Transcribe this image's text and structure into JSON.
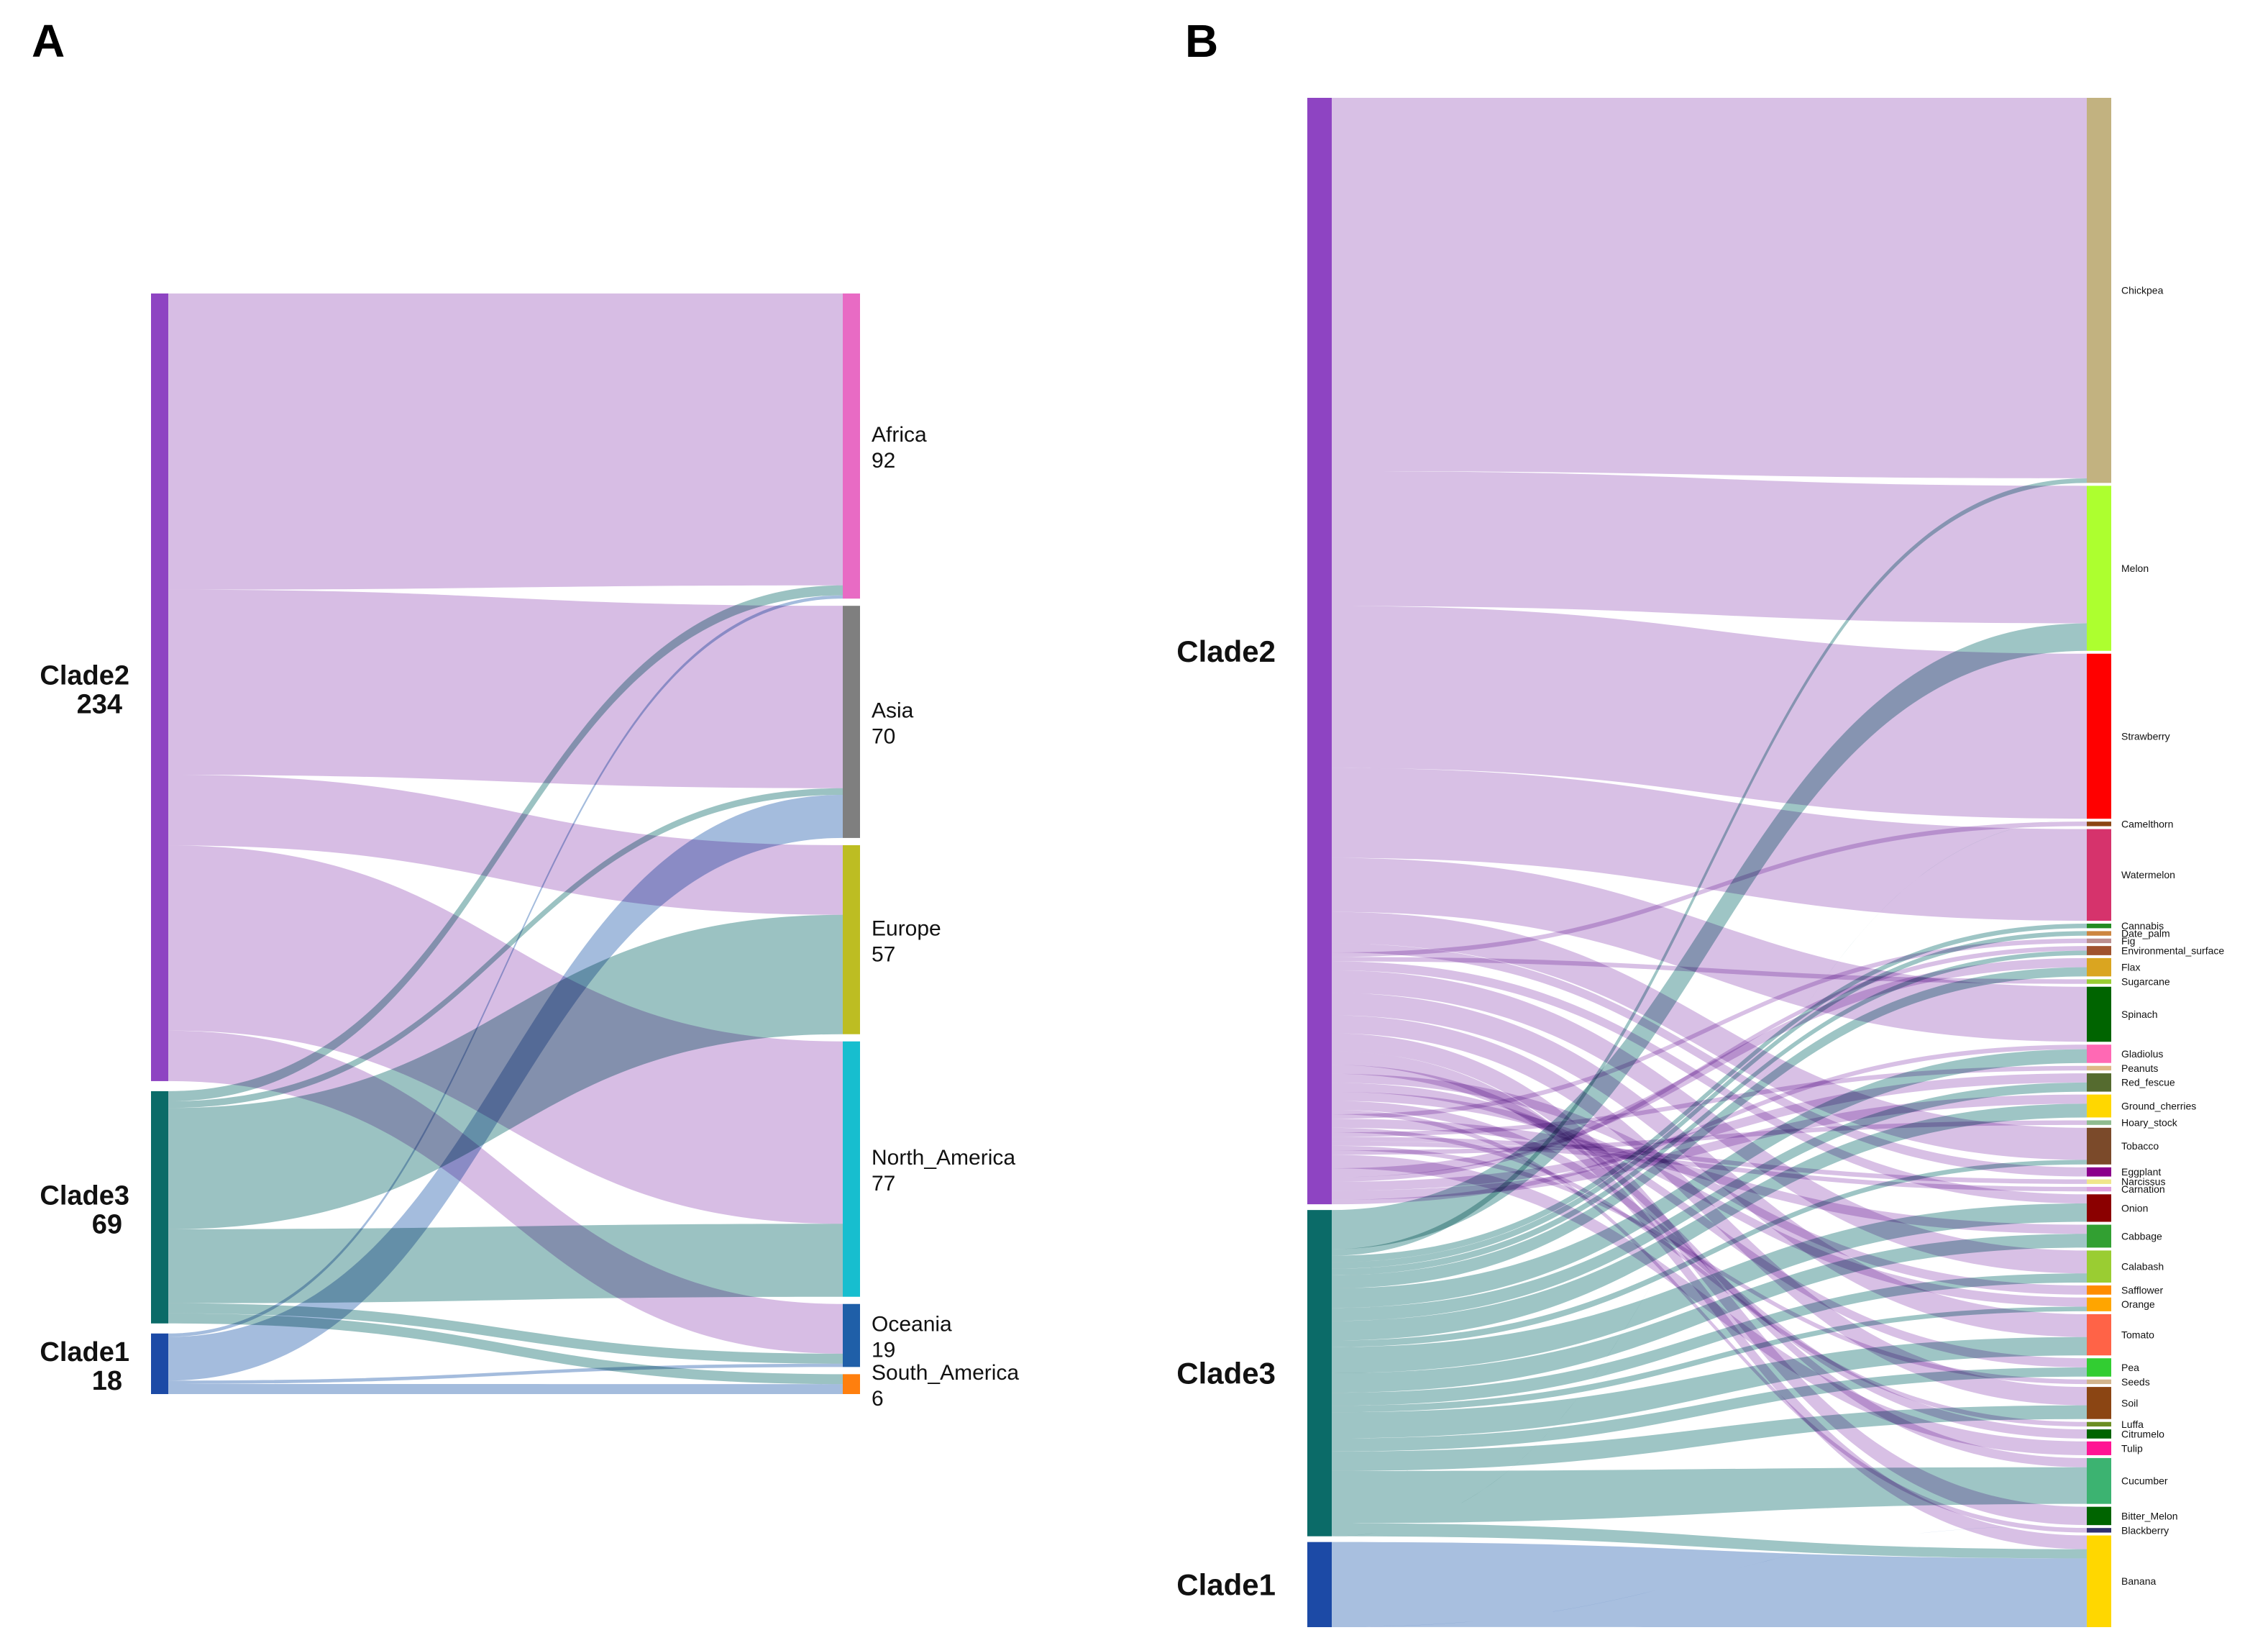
{
  "panels": [
    {
      "letter": "A",
      "sources": [
        {
          "name": "Clade2",
          "value": 234,
          "color": "#8e44c2",
          "flow": "#c9a7db"
        },
        {
          "name": "Clade3",
          "value": 69,
          "color": "#0b6b68",
          "flow": "#79aeae"
        },
        {
          "name": "Clade1",
          "value": 18,
          "color": "#1c4aa6",
          "flow": "#86a6d2"
        }
      ],
      "show_source_values": true,
      "show_target_values": true,
      "targets": [
        {
          "name": "Africa",
          "value": 92,
          "color": "#e86bc4"
        },
        {
          "name": "Asia",
          "value": 70,
          "color": "#7f7f7f"
        },
        {
          "name": "Europe",
          "value": 57,
          "color": "#bdbd22"
        },
        {
          "name": "North_America",
          "value": 77,
          "color": "#17becf"
        },
        {
          "name": "Oceania",
          "value": 19,
          "color": "#1f5fa8"
        },
        {
          "name": "South_America",
          "value": 6,
          "color": "#ff7f0e"
        }
      ],
      "links": [
        [
          "Clade2",
          "Africa",
          88
        ],
        [
          "Clade2",
          "Asia",
          55
        ],
        [
          "Clade2",
          "Europe",
          21
        ],
        [
          "Clade2",
          "North_America",
          55
        ],
        [
          "Clade2",
          "Oceania",
          15
        ],
        [
          "Clade3",
          "Africa",
          3
        ],
        [
          "Clade3",
          "Asia",
          2
        ],
        [
          "Clade3",
          "Europe",
          36
        ],
        [
          "Clade3",
          "North_America",
          22
        ],
        [
          "Clade3",
          "Oceania",
          3
        ],
        [
          "Clade3",
          "South_America",
          3
        ],
        [
          "Clade1",
          "Africa",
          1
        ],
        [
          "Clade1",
          "Asia",
          13
        ],
        [
          "Clade1",
          "Oceania",
          1
        ],
        [
          "Clade1",
          "South_America",
          3
        ]
      ]
    },
    {
      "letter": "B",
      "sources": [
        {
          "name": "Clade2",
          "value": 234,
          "color": "#8e44c2",
          "flow": "#c9a7db"
        },
        {
          "name": "Clade3",
          "value": 69,
          "color": "#0b6b68",
          "flow": "#79aeae"
        },
        {
          "name": "Clade1",
          "value": 18,
          "color": "#1c4aa6",
          "flow": "#86a6d2"
        }
      ],
      "show_source_values": false,
      "show_target_values": false,
      "targets": [
        {
          "name": "Chickpea",
          "value": 84,
          "color": "#c2b280"
        },
        {
          "name": "Melon",
          "value": 36,
          "color": "#adff2f"
        },
        {
          "name": "Strawberry",
          "value": 36,
          "color": "#ff0000"
        },
        {
          "name": "Camelthorn",
          "value": 1,
          "color": "#8b4513"
        },
        {
          "name": "Watermelon",
          "value": 20,
          "color": "#d6336c"
        },
        {
          "name": "Cannabis",
          "value": 1,
          "color": "#228b22"
        },
        {
          "name": "Date_palm",
          "value": 1,
          "color": "#cd853f"
        },
        {
          "name": "Fig",
          "value": 1,
          "color": "#bc8f8f"
        },
        {
          "name": "Environmental_surface",
          "value": 2,
          "color": "#a0522d"
        },
        {
          "name": "Flax",
          "value": 4,
          "color": "#daa520"
        },
        {
          "name": "Sugarcane",
          "value": 1,
          "color": "#9acd32"
        },
        {
          "name": "Spinach",
          "value": 12,
          "color": "#006400"
        },
        {
          "name": "Gladiolus",
          "value": 4,
          "color": "#ff69b4"
        },
        {
          "name": "Peanuts",
          "value": 1,
          "color": "#deb887"
        },
        {
          "name": "Red_fescue",
          "value": 4,
          "color": "#556b2f"
        },
        {
          "name": "Ground_cherries",
          "value": 5,
          "color": "#ffd700"
        },
        {
          "name": "Hoary_stock",
          "value": 1,
          "color": "#8fbc8f"
        },
        {
          "name": "Tobacco",
          "value": 8,
          "color": "#7b4a2a"
        },
        {
          "name": "Eggplant",
          "value": 2,
          "color": "#8b008b"
        },
        {
          "name": "Narcissus",
          "value": 1,
          "color": "#f0e68c"
        },
        {
          "name": "Carnation",
          "value": 1,
          "color": "#dda0dd"
        },
        {
          "name": "Onion",
          "value": 6,
          "color": "#8b0000"
        },
        {
          "name": "Cabbage",
          "value": 5,
          "color": "#32a032"
        },
        {
          "name": "Calabash",
          "value": 7,
          "color": "#9acd32"
        },
        {
          "name": "Safflower",
          "value": 2,
          "color": "#ff8c00"
        },
        {
          "name": "Orange",
          "value": 3,
          "color": "#ffa500"
        },
        {
          "name": "Tomato",
          "value": 9,
          "color": "#ff6347"
        },
        {
          "name": "Pea",
          "value": 4,
          "color": "#32cd32"
        },
        {
          "name": "Seeds",
          "value": 1,
          "color": "#d2b48c"
        },
        {
          "name": "Soil",
          "value": 7,
          "color": "#8b4513"
        },
        {
          "name": "Luffa",
          "value": 1,
          "color": "#6b8e23"
        },
        {
          "name": "Citrumelo",
          "value": 2,
          "color": "#006400"
        },
        {
          "name": "Tulip",
          "value": 3,
          "color": "#ff1493"
        },
        {
          "name": "Cucumber",
          "value": 10,
          "color": "#3cb371"
        },
        {
          "name": "Bitter_Melon",
          "value": 4,
          "color": "#006400"
        },
        {
          "name": "Blackberry",
          "value": 1,
          "color": "#2f2f6f"
        },
        {
          "name": "Banana",
          "value": 20,
          "color": "#ffd700"
        }
      ],
      "links": [
        [
          "Clade2",
          "Chickpea",
          83
        ],
        [
          "Clade2",
          "Melon",
          30
        ],
        [
          "Clade2",
          "Strawberry",
          36
        ],
        [
          "Clade2",
          "Watermelon",
          20
        ],
        [
          "Clade2",
          "Spinach",
          12
        ],
        [
          "Clade2",
          "Tobacco",
          7
        ],
        [
          "Clade2",
          "Eggplant",
          2
        ],
        [
          "Clade2",
          "Camelthorn",
          1
        ],
        [
          "Clade2",
          "Sugarcane",
          1
        ],
        [
          "Clade2",
          "Onion",
          2
        ],
        [
          "Clade2",
          "Calabash",
          5
        ],
        [
          "Clade2",
          "Tomato",
          5
        ],
        [
          "Clade2",
          "Soil",
          4
        ],
        [
          "Clade2",
          "Bitter_Melon",
          4
        ],
        [
          "Clade2",
          "Banana",
          3
        ],
        [
          "Clade2",
          "Cucumber",
          2
        ],
        [
          "Clade2",
          "Safflower",
          2
        ],
        [
          "Clade2",
          "Pea",
          2
        ],
        [
          "Clade2",
          "Orange",
          2
        ],
        [
          "Clade2",
          "Citrumelo",
          2
        ],
        [
          "Clade2",
          "Blackberry",
          1
        ],
        [
          "Clade2",
          "Fig",
          1
        ],
        [
          "Clade2",
          "Cabbage",
          2
        ],
        [
          "Clade2",
          "Luffa",
          1
        ],
        [
          "Clade2",
          "Peanuts",
          1
        ],
        [
          "Clade2",
          "Narcissus",
          1
        ],
        [
          "Clade2",
          "Carnation",
          1
        ],
        [
          "Clade2",
          "Seeds",
          1
        ],
        [
          "Clade2",
          "Hoary_stock",
          1
        ],
        [
          "Clade2",
          "Tulip",
          3
        ],
        [
          "Clade2",
          "Flax",
          2
        ],
        [
          "Clade2",
          "Environmental_surface",
          1
        ],
        [
          "Clade2",
          "Red_fescue",
          2
        ],
        [
          "Clade2",
          "Ground_cherries",
          2
        ],
        [
          "Clade2",
          "Gladiolus",
          1
        ],
        [
          "Clade3",
          "Melon",
          6
        ],
        [
          "Clade3",
          "Chickpea",
          1
        ],
        [
          "Clade3",
          "Cannabis",
          1
        ],
        [
          "Clade3",
          "Date_palm",
          1
        ],
        [
          "Clade3",
          "Environmental_surface",
          1
        ],
        [
          "Clade3",
          "Flax",
          2
        ],
        [
          "Clade3",
          "Gladiolus",
          3
        ],
        [
          "Clade3",
          "Red_fescue",
          2
        ],
        [
          "Clade3",
          "Ground_cherries",
          3
        ],
        [
          "Clade3",
          "Tobacco",
          1
        ],
        [
          "Clade3",
          "Onion",
          4
        ],
        [
          "Clade3",
          "Cabbage",
          3
        ],
        [
          "Clade3",
          "Calabash",
          2
        ],
        [
          "Clade3",
          "Orange",
          1
        ],
        [
          "Clade3",
          "Tomato",
          4
        ],
        [
          "Clade3",
          "Pea",
          2
        ],
        [
          "Clade3",
          "Soil",
          3
        ],
        [
          "Clade3",
          "Cucumber",
          8
        ],
        [
          "Clade3",
          "Banana",
          2
        ],
        [
          "Clade3",
          "Strawberry",
          0.01
        ],
        [
          "Clade1",
          "Banana",
          15
        ],
        [
          "Clade1",
          "Bitter_Melon",
          0.01
        ]
      ]
    }
  ]
}
